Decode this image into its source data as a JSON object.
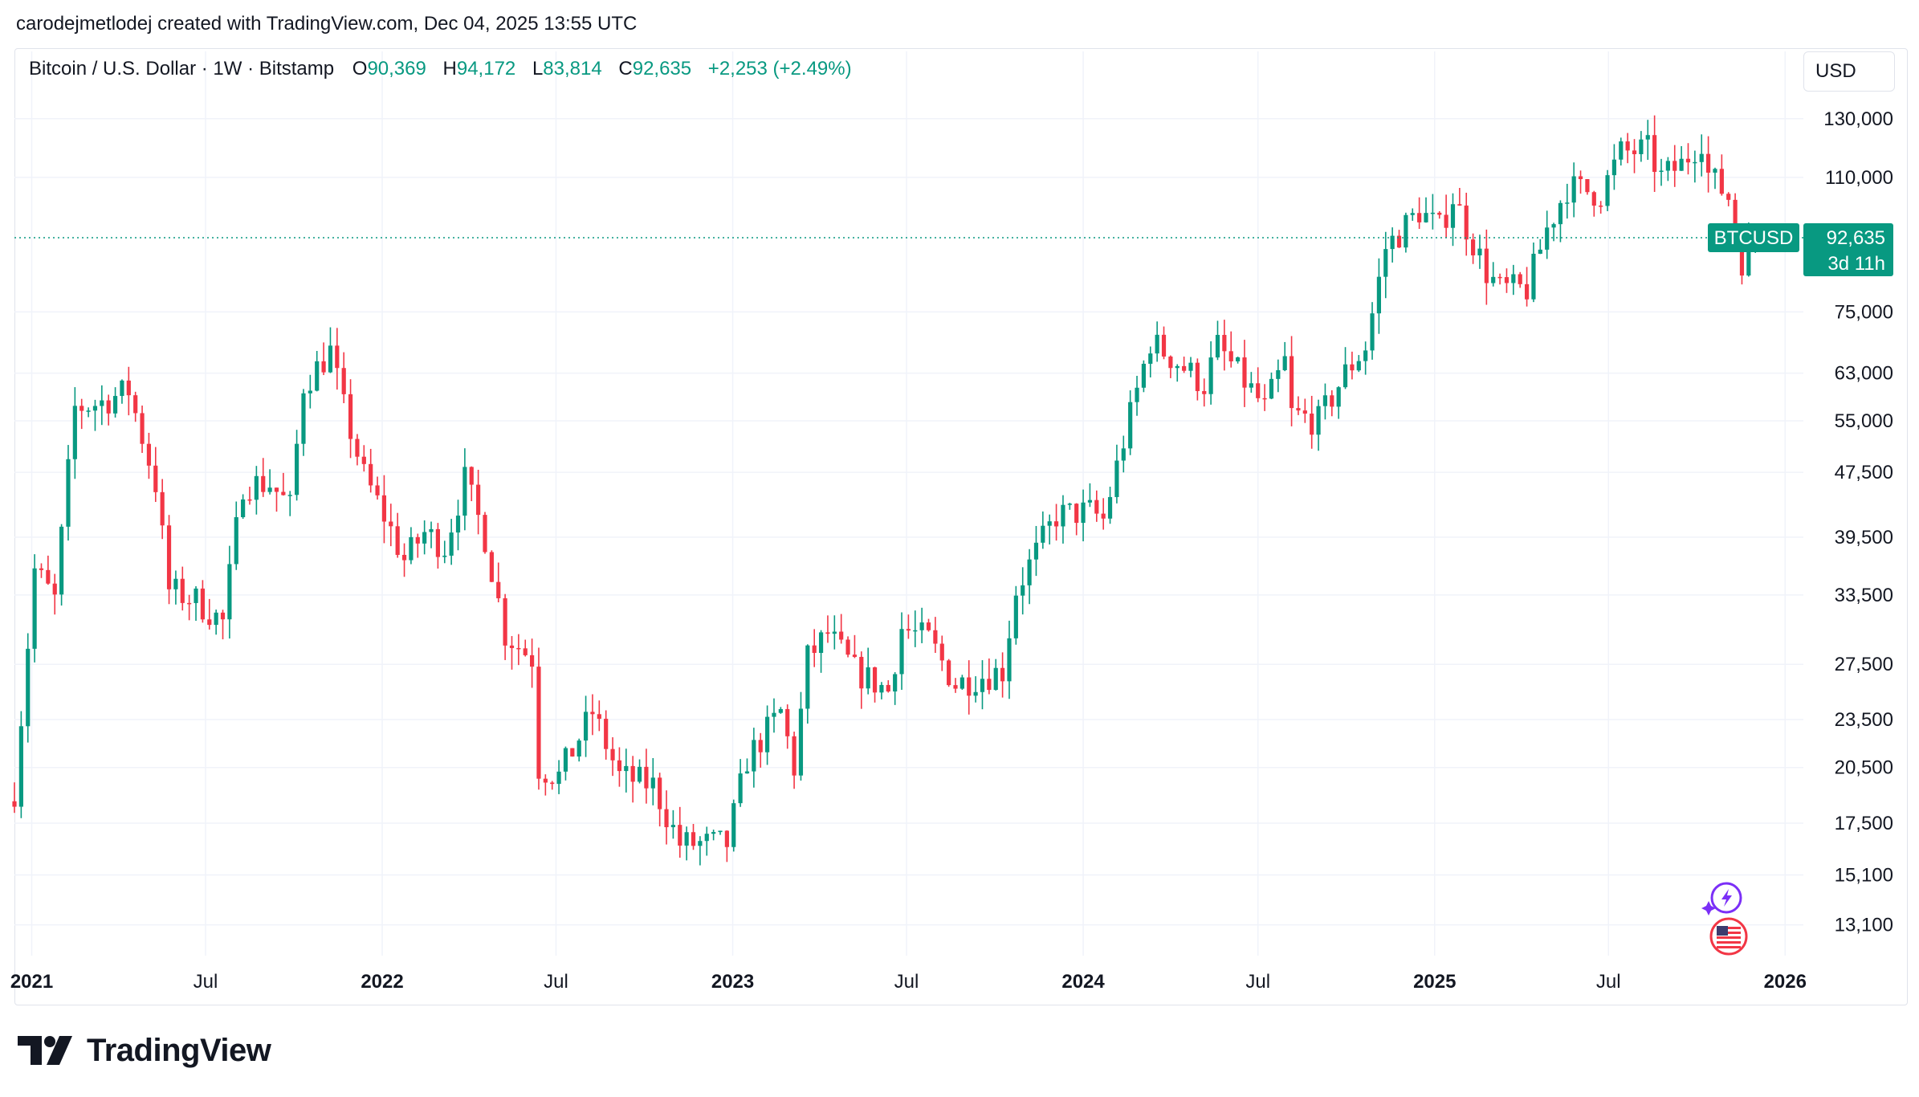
{
  "header": {
    "credit": "carodejmetlodej created with TradingView.com, Dec 04, 2025 13:55 UTC"
  },
  "legend": {
    "symbol": "Bitcoin / U.S. Dollar · 1W · Bitstamp",
    "open_key": "O",
    "open": "90,369",
    "high_key": "H",
    "high": "94,172",
    "low_key": "L",
    "low": "83,814",
    "close_key": "C",
    "close": "92,635",
    "change": "+2,253 (+2.49%)"
  },
  "currency_button": "USD",
  "price_tag": {
    "name": "BTCUSD",
    "price": "92,635",
    "countdown": "3d 11h"
  },
  "brand": {
    "name": "TradingView"
  },
  "colors": {
    "up": "#089981",
    "down": "#f23645",
    "grid": "#f0f3fa",
    "text": "#131722",
    "gridline_price": "#089981",
    "accent_purple": "#7b2ff7"
  },
  "icons": [
    "tradingview-logo-icon",
    "lightning-spark-icon",
    "us-flag-icon"
  ],
  "chart_data": {
    "type": "candlestick",
    "interval": "1W",
    "scale": "log",
    "grid": true,
    "y_ticks": [
      "130,000",
      "110,000",
      "75,000",
      "63,000",
      "55,000",
      "47,500",
      "39,500",
      "33,500",
      "27,500",
      "23,500",
      "20,500",
      "17,500",
      "15,100",
      "13,100"
    ],
    "y_tick_values": [
      130000,
      110000,
      75000,
      63000,
      55000,
      47500,
      39500,
      33500,
      27500,
      23500,
      20500,
      17500,
      15100,
      13100
    ],
    "y_range": [
      12000,
      145000
    ],
    "x_range": [
      "2020-12-14",
      "2026-01-20"
    ],
    "x_ticks": [
      {
        "label": "2021",
        "date": "2021-01-01",
        "bold": true
      },
      {
        "label": "Jul",
        "date": "2021-07-01",
        "bold": false
      },
      {
        "label": "2022",
        "date": "2022-01-01",
        "bold": true
      },
      {
        "label": "Jul",
        "date": "2022-07-01",
        "bold": false
      },
      {
        "label": "2023",
        "date": "2023-01-01",
        "bold": true
      },
      {
        "label": "Jul",
        "date": "2023-07-01",
        "bold": false
      },
      {
        "label": "2024",
        "date": "2024-01-01",
        "bold": true
      },
      {
        "label": "Jul",
        "date": "2024-07-01",
        "bold": false
      },
      {
        "label": "2025",
        "date": "2025-01-01",
        "bold": true
      },
      {
        "label": "Jul",
        "date": "2025-07-01",
        "bold": false
      },
      {
        "label": "2026",
        "date": "2026-01-01",
        "bold": true
      }
    ],
    "last_price": 92635,
    "anchors": [
      [
        "2020-12-14",
        19200
      ],
      [
        "2021-01-04",
        36000
      ],
      [
        "2021-01-25",
        33000
      ],
      [
        "2021-02-15",
        57000
      ],
      [
        "2021-03-15",
        58000
      ],
      [
        "2021-04-12",
        60000
      ],
      [
        "2021-05-10",
        46000
      ],
      [
        "2021-05-24",
        34000
      ],
      [
        "2021-06-21",
        33000
      ],
      [
        "2021-07-19",
        31000
      ],
      [
        "2021-08-09",
        46000
      ],
      [
        "2021-09-06",
        46000
      ],
      [
        "2021-09-27",
        43000
      ],
      [
        "2021-10-11",
        61000
      ],
      [
        "2021-11-08",
        67000
      ],
      [
        "2021-11-22",
        57000
      ],
      [
        "2021-12-13",
        47000
      ],
      [
        "2022-01-03",
        42000
      ],
      [
        "2022-01-24",
        37000
      ],
      [
        "2022-02-14",
        40000
      ],
      [
        "2022-03-07",
        38500
      ],
      [
        "2022-03-28",
        46500
      ],
      [
        "2022-04-18",
        39500
      ],
      [
        "2022-05-09",
        30000
      ],
      [
        "2022-06-06",
        28000
      ],
      [
        "2022-06-13",
        20500
      ],
      [
        "2022-07-04",
        20000
      ],
      [
        "2022-08-08",
        24000
      ],
      [
        "2022-09-05",
        20000
      ],
      [
        "2022-10-10",
        19500
      ],
      [
        "2022-11-07",
        16500
      ],
      [
        "2022-12-26",
        16500
      ],
      [
        "2023-01-16",
        21000
      ],
      [
        "2023-02-20",
        24000
      ],
      [
        "2023-03-06",
        20500
      ],
      [
        "2023-03-20",
        28000
      ],
      [
        "2023-04-10",
        30000
      ],
      [
        "2023-05-08",
        27000
      ],
      [
        "2023-06-12",
        25500
      ],
      [
        "2023-06-26",
        30500
      ],
      [
        "2023-07-24",
        29500
      ],
      [
        "2023-08-21",
        26000
      ],
      [
        "2023-09-11",
        26500
      ],
      [
        "2023-10-09",
        27000
      ],
      [
        "2023-10-23",
        34000
      ],
      [
        "2023-12-04",
        42000
      ],
      [
        "2024-01-08",
        42500
      ],
      [
        "2024-01-22",
        41500
      ],
      [
        "2024-02-12",
        52000
      ],
      [
        "2024-03-11",
        69000
      ],
      [
        "2024-04-08",
        65000
      ],
      [
        "2024-05-06",
        61000
      ],
      [
        "2024-05-20",
        68000
      ],
      [
        "2024-06-24",
        60000
      ],
      [
        "2024-07-08",
        57000
      ],
      [
        "2024-07-29",
        65000
      ],
      [
        "2024-08-05",
        56000
      ],
      [
        "2024-09-02",
        55000
      ],
      [
        "2024-09-30",
        63000
      ],
      [
        "2024-10-21",
        68000
      ],
      [
        "2024-11-11",
        90000
      ],
      [
        "2024-12-16",
        100000
      ],
      [
        "2025-01-06",
        95000
      ],
      [
        "2025-01-20",
        104000
      ],
      [
        "2025-02-24",
        84000
      ],
      [
        "2025-03-10",
        80000
      ],
      [
        "2025-04-07",
        80000
      ],
      [
        "2025-04-28",
        95000
      ],
      [
        "2025-05-19",
        107000
      ],
      [
        "2025-06-23",
        105000
      ],
      [
        "2025-07-14",
        118000
      ],
      [
        "2025-08-11",
        119000
      ],
      [
        "2025-08-25",
        110000
      ],
      [
        "2025-09-15",
        114000
      ],
      [
        "2025-10-06",
        123000
      ],
      [
        "2025-10-13",
        111000
      ],
      [
        "2025-11-03",
        104000
      ],
      [
        "2025-11-17",
        87000
      ],
      [
        "2025-12-01",
        92635
      ]
    ]
  }
}
